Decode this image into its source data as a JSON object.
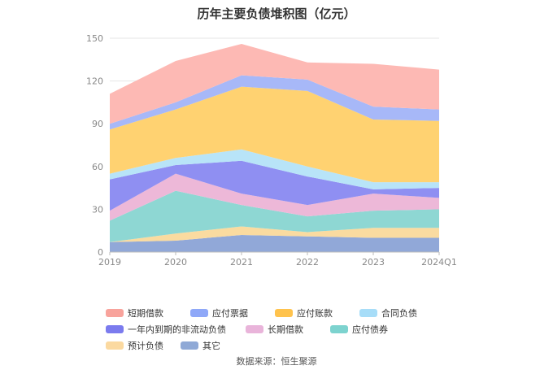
{
  "chart_data": {
    "type": "area",
    "stacked": true,
    "title": "历年主要负债堆积图（亿元）",
    "categories": [
      "2019",
      "2020",
      "2021",
      "2022",
      "2023",
      "2024Q1"
    ],
    "ylim": [
      0,
      150
    ],
    "yticks": [
      0,
      30,
      60,
      90,
      120,
      150
    ],
    "grid": true,
    "legend_position": "bottom",
    "series": [
      {
        "name": "其它",
        "color": "#91A8D8",
        "values": [
          7,
          8,
          12,
          11,
          10,
          10
        ]
      },
      {
        "name": "预计负债",
        "color": "#FADBA0",
        "values": [
          0,
          5,
          6,
          3,
          7,
          7
        ]
      },
      {
        "name": "应付债券",
        "color": "#8ED7D3",
        "values": [
          15,
          30,
          15,
          11,
          12,
          13
        ]
      },
      {
        "name": "长期借款",
        "color": "#EDB8D8",
        "values": [
          7,
          12,
          8,
          8,
          12,
          8
        ]
      },
      {
        "name": "一年内到期的非流动负债",
        "color": "#8F8FF2",
        "values": [
          22,
          6,
          23,
          20,
          3,
          7
        ]
      },
      {
        "name": "合同负债",
        "color": "#B8E4F8",
        "values": [
          4,
          5,
          8,
          7,
          5,
          4
        ]
      },
      {
        "name": "应付账款",
        "color": "#FFD271",
        "values": [
          31,
          34,
          44,
          53,
          44,
          43
        ]
      },
      {
        "name": "应付票据",
        "color": "#A7B8F8",
        "values": [
          4,
          5,
          8,
          8,
          9,
          8
        ]
      },
      {
        "name": "短期借款",
        "color": "#FDB9B4",
        "values": [
          21,
          29,
          22,
          12,
          30,
          28
        ]
      }
    ],
    "legend_order": [
      "短期借款",
      "应付票据",
      "应付账款",
      "合同负债",
      "一年内到期的非流动负债",
      "长期借款",
      "应付债券",
      "预计负债",
      "其它"
    ],
    "legend_colors": {
      "短期借款": "#F8A39C",
      "应付票据": "#8FA8F8",
      "应付账款": "#FFC34D",
      "合同负债": "#A7DDF8",
      "一年内到期的非流动负债": "#7B7BEE",
      "长期借款": "#E9B4DA",
      "应付债券": "#7DD3CF",
      "预计负债": "#FBD9A0",
      "其它": "#8FA9D6"
    }
  },
  "source": "数据来源：恒生聚源"
}
